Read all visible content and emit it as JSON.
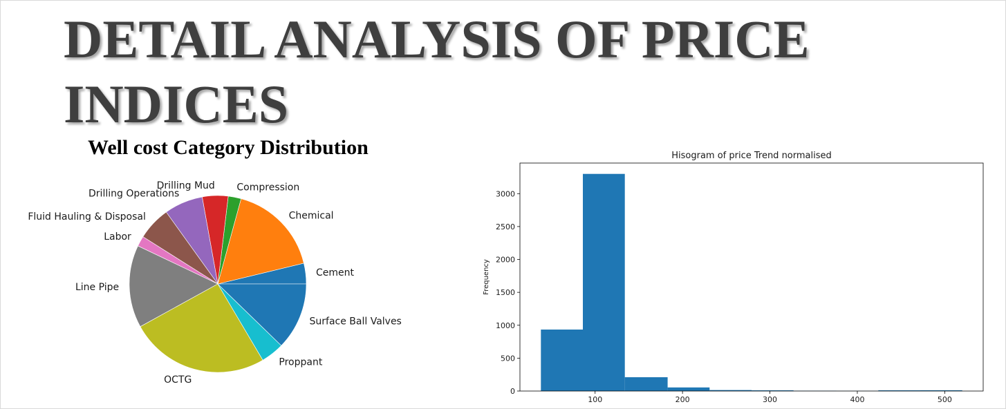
{
  "page": {
    "title": "DETAIL ANALYSIS OF PRICE INDICES"
  },
  "chart_data": [
    {
      "type": "pie",
      "title": "Well cost Category Distribution",
      "labels": [
        "Cement",
        "Chemical",
        "Compression",
        "Drilling Mud",
        "Drilling Operations",
        "Fluid Hauling & Disposal",
        "Labor",
        "Line Pipe",
        "OCTG",
        "Proppant",
        "Surface Ball Valves"
      ],
      "values": [
        4.0,
        18.0,
        2.5,
        5.0,
        7.5,
        6.5,
        2.0,
        16.0,
        27.0,
        4.5,
        13.0
      ],
      "colors": [
        "#1f77b4",
        "#ff7f0e",
        "#2ca02c",
        "#d62728",
        "#9467bd",
        "#8c564b",
        "#e377c2",
        "#7f7f7f",
        "#bcbd22",
        "#17becf",
        "#1f77b4"
      ]
    },
    {
      "type": "bar",
      "title": "Hisogram of price Trend normalised",
      "xlabel": "",
      "ylabel": "Frequency",
      "bins": [
        {
          "start": 38,
          "end": 86,
          "count": 935
        },
        {
          "start": 86,
          "end": 134,
          "count": 3300
        },
        {
          "start": 134,
          "end": 183,
          "count": 210
        },
        {
          "start": 183,
          "end": 231,
          "count": 55
        },
        {
          "start": 231,
          "end": 279,
          "count": 15
        },
        {
          "start": 279,
          "end": 327,
          "count": 10
        },
        {
          "start": 327,
          "end": 376,
          "count": 5
        },
        {
          "start": 376,
          "end": 424,
          "count": 3
        },
        {
          "start": 424,
          "end": 472,
          "count": 10
        },
        {
          "start": 472,
          "end": 520,
          "count": 12
        }
      ],
      "xlim": [
        14,
        544
      ],
      "ylim": [
        0,
        3465
      ],
      "xticks": [
        100,
        200,
        300,
        400,
        500
      ],
      "yticks": [
        0,
        500,
        1000,
        1500,
        2000,
        2500,
        3000
      ],
      "bar_color": "#1f77b4",
      "grid": false
    }
  ]
}
